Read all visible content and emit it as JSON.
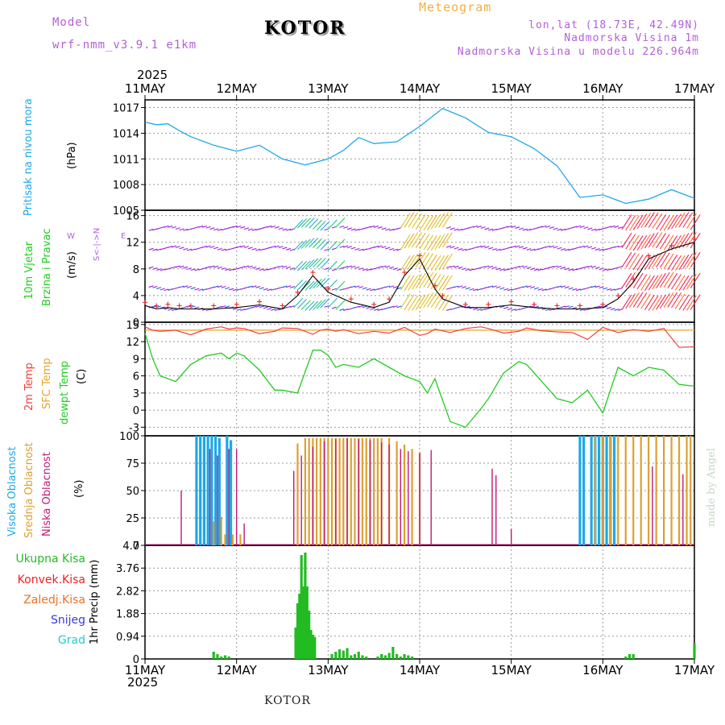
{
  "header": {
    "model_label": "Model",
    "model_name": "wrf-nmm_v3.9.1  e1km",
    "station": "KOTOR",
    "chart_title": "Meteogram",
    "lonlat": "lon,lat (18.73E, 42.49N)",
    "elevation": "Nadmorska Visina 1m",
    "model_elevation": "Nadmorska Visina u modelu 226.964m",
    "year_top": "2025",
    "year_bottom": "2025",
    "footer_station": "KOTOR",
    "credit": "made by Angel"
  },
  "axis_dates": [
    "11MAY",
    "12MAY",
    "13MAY",
    "14MAY",
    "15MAY",
    "16MAY",
    "17MAY"
  ],
  "colors": {
    "pressure": "#1ea8e8",
    "temp2m": "#ee4040",
    "sfc_temp": "#e9a42a",
    "dewpoint": "#22cc22",
    "cloud_high": "#1ea8e8",
    "cloud_mid": "#dea030",
    "cloud_low": "#c01a7a",
    "precip_total": "#22bb22",
    "precip_conv": "#ee2222",
    "precip_frz": "#f07020",
    "precip_snow": "#3838e0",
    "precip_hail": "#22cccc"
  },
  "panel_labels": {
    "pressure_title": "Pritisak na nivou mora",
    "pressure_unit": "(hPa)",
    "wind_title1": "10m Vjetar",
    "wind_title2": "Brzina i Pravac",
    "wind_unit": "(m/s)",
    "wind_dir_compass": "S<-|->N",
    "wind_dir_w": "W",
    "wind_dir_e": "E",
    "temp_2m": "2m Temp",
    "temp_sfc": "SFC Temp",
    "temp_dew": "dewpt Temp",
    "temp_unit": "(C)",
    "cloud_high": "Visoka Oblacnost",
    "cloud_mid": "Srednja Oblacnost",
    "cloud_low": "Niska Oblacnost",
    "cloud_unit": "(%)",
    "precip_unit": "1hr Precip (mm)"
  },
  "precip_legend": [
    "Ukupna Kisa",
    "Konvek.Kisa",
    "Zaledj.Kisa",
    "Snijeg",
    "Grad"
  ],
  "chart_data": [
    {
      "type": "line",
      "panel": "pressure",
      "ylabel": "(hPa)",
      "yticks": [
        1005,
        1008,
        1011,
        1014,
        1017
      ],
      "ylim": [
        1005,
        1017.9
      ],
      "x_hours": [
        0,
        3,
        6,
        9,
        12,
        18,
        24,
        30,
        36,
        42,
        48,
        52,
        56,
        60,
        66,
        72,
        78,
        84,
        90,
        96,
        102,
        108,
        114,
        120,
        126,
        132,
        138,
        144
      ],
      "series": [
        {
          "name": "Pritisak na nivou mora",
          "values": [
            1015.3,
            1015.0,
            1015.1,
            1014.3,
            1013.6,
            1012.6,
            1011.9,
            1012.6,
            1011.0,
            1010.3,
            1011.0,
            1012.0,
            1013.5,
            1012.8,
            1013.0,
            1014.8,
            1016.9,
            1015.8,
            1014.1,
            1013.6,
            1012.2,
            1010.2,
            1006.5,
            1006.8,
            1005.8,
            1006.3,
            1007.4,
            1006.4
          ]
        }
      ]
    },
    {
      "type": "line",
      "panel": "wind",
      "ylabel": "(m/s)",
      "yticks": [
        0,
        4,
        8,
        12,
        16
      ],
      "ylim": [
        0,
        16.8
      ],
      "x_hours": [
        0,
        3,
        6,
        9,
        12,
        18,
        24,
        30,
        36,
        40,
        44,
        48,
        54,
        60,
        64,
        68,
        72,
        76,
        78,
        84,
        90,
        96,
        102,
        108,
        114,
        120,
        124,
        128,
        132,
        138,
        144
      ],
      "series": [
        {
          "name": "10m Vjetar",
          "values": [
            2.5,
            2.0,
            2.2,
            2.0,
            2.0,
            2.0,
            2.2,
            2.6,
            2.0,
            4.0,
            7.0,
            4.5,
            3.0,
            2.2,
            3.0,
            7.0,
            9.5,
            5.0,
            3.5,
            2.2,
            2.2,
            2.6,
            2.2,
            2.0,
            2.0,
            2.2,
            3.5,
            6.0,
            9.5,
            11.0,
            12.0
          ]
        }
      ]
    },
    {
      "type": "line",
      "panel": "temperature",
      "ylabel": "(C)",
      "yticks": [
        -3,
        0,
        3,
        6,
        9,
        12,
        15
      ],
      "ylim": [
        -4.5,
        15.4
      ],
      "x_hours": [
        0,
        2,
        4,
        6,
        8,
        10,
        12,
        16,
        20,
        22,
        24,
        26,
        30,
        34,
        36,
        40,
        44,
        46,
        48,
        50,
        52,
        56,
        60,
        64,
        68,
        72,
        74,
        76,
        80,
        84,
        88,
        90,
        94,
        98,
        100,
        104,
        108,
        112,
        116,
        120,
        124,
        128,
        132,
        136,
        140,
        144
      ],
      "series": [
        {
          "name": "2m Temp",
          "values": [
            14.6,
            14.0,
            13.8,
            13.9,
            14.0,
            13.6,
            13.2,
            14.2,
            14.6,
            14.2,
            14.4,
            14.3,
            13.4,
            13.8,
            14.4,
            14.3,
            13.3,
            14.0,
            14.2,
            13.8,
            14.1,
            13.4,
            13.8,
            13.5,
            14.5,
            13.1,
            13.4,
            14.2,
            13.6,
            14.3,
            14.6,
            14.3,
            13.5,
            13.8,
            14.4,
            13.9,
            13.7,
            13.6,
            12.4,
            14.5,
            13.6,
            14.1,
            13.8,
            14.3,
            11.0,
            11.1
          ]
        },
        {
          "name": "SFC Temp",
          "values": [
            14.0,
            14.0,
            14.0,
            14.0,
            14.0,
            14.0,
            14.0,
            14.0,
            14.0,
            14.0,
            14.0,
            14.0,
            14.0,
            14.0,
            14.0,
            14.0,
            14.0,
            14.0,
            14.0,
            14.0,
            14.0,
            14.0,
            14.0,
            14.0,
            14.0,
            14.0,
            14.0,
            14.0,
            14.0,
            14.0,
            14.0,
            14.0,
            14.0,
            14.0,
            14.0,
            14.0,
            14.0,
            14.0,
            14.0,
            14.0,
            14.0,
            14.0,
            14.0,
            14.0,
            14.0,
            14.0
          ]
        },
        {
          "name": "dewpt Temp",
          "values": [
            13.5,
            9.0,
            6.0,
            5.5,
            5.0,
            6.5,
            8.0,
            9.5,
            10.0,
            9.0,
            10.0,
            9.5,
            7.0,
            3.5,
            3.5,
            3.0,
            10.5,
            10.5,
            9.6,
            7.5,
            8.0,
            7.5,
            9.0,
            7.5,
            6.0,
            5.0,
            3.0,
            5.5,
            -2.0,
            -3.0,
            0.2,
            2.0,
            6.5,
            8.5,
            8.0,
            5.0,
            2.0,
            1.3,
            3.5,
            -0.5,
            7.5,
            6.0,
            7.5,
            7.0,
            4.5,
            4.2
          ]
        }
      ]
    },
    {
      "type": "bar",
      "panel": "clouds",
      "ylabel": "(%)",
      "yticks": [
        0,
        25,
        50,
        75,
        100
      ],
      "ylim": [
        0,
        100
      ],
      "series": [
        {
          "name": "Visoka Oblacnost",
          "x_hours": [
            13.5,
            14.5,
            15.5,
            16.5,
            17.5,
            18.5,
            19.5,
            21.5,
            22.5,
            114,
            115,
            117,
            118,
            119,
            120,
            121,
            122,
            123
          ],
          "values": [
            100,
            100,
            100,
            100,
            100,
            100,
            98,
            100,
            96,
            100,
            100,
            100,
            100,
            100,
            100,
            100,
            100,
            100
          ]
        },
        {
          "name": "Srednja Oblacnost",
          "x_hours": [
            18,
            20,
            21,
            23,
            25,
            40,
            42,
            43,
            44,
            45,
            46,
            47,
            48,
            49,
            50,
            51,
            52,
            53,
            54,
            55,
            56,
            57,
            58,
            59,
            60,
            61,
            62,
            64,
            66,
            68,
            70,
            72,
            118,
            120,
            122,
            124,
            126,
            128,
            130,
            132,
            134,
            136,
            138,
            140,
            142,
            143
          ],
          "values": [
            22,
            26,
            10,
            10,
            10,
            93,
            98,
            98,
            98,
            98,
            98,
            98,
            98,
            98,
            98,
            98,
            98,
            98,
            98,
            98,
            98,
            98,
            98,
            98,
            98,
            98,
            98,
            98,
            95,
            92,
            88,
            85,
            100,
            100,
            100,
            100,
            100,
            100,
            100,
            100,
            100,
            100,
            100,
            100,
            100,
            100
          ]
        },
        {
          "name": "Niska Oblacnost",
          "x_hours": [
            9.5,
            17,
            19,
            22,
            24,
            26,
            39,
            41,
            44,
            47,
            50,
            53,
            56,
            59,
            62,
            64,
            67,
            69,
            72,
            75,
            91,
            92,
            96,
            133,
            141
          ],
          "values": [
            50,
            88,
            82,
            88,
            88,
            20,
            68,
            82,
            90,
            95,
            97,
            98,
            97,
            96,
            94,
            92,
            88,
            86,
            84,
            87,
            70,
            64,
            15,
            72,
            65
          ]
        }
      ]
    },
    {
      "type": "bar",
      "panel": "precipitation",
      "ylabel": "1hr Precip (mm)",
      "yticks": [
        0,
        0.94,
        1.88,
        2.82,
        3.76,
        4.7
      ],
      "ylim": [
        0,
        4.7
      ],
      "series": [
        {
          "name": "Ukupna Kisa",
          "x_hours": [
            18,
            19,
            20,
            21,
            22,
            39.5,
            40,
            40.5,
            41,
            41.5,
            42,
            42.5,
            43,
            43.5,
            44,
            44.5,
            49,
            50,
            51,
            52,
            53,
            54,
            55,
            56,
            57,
            58,
            61,
            62,
            63,
            64,
            65,
            66,
            67,
            68,
            69,
            70,
            126,
            127,
            128,
            144
          ],
          "values": [
            0.3,
            0.2,
            0.1,
            0.15,
            0.1,
            1.3,
            2.3,
            2.7,
            4.3,
            3.0,
            4.4,
            3.0,
            2.0,
            1.2,
            1.0,
            0.9,
            0.2,
            0.3,
            0.4,
            0.35,
            0.45,
            0.15,
            0.2,
            0.3,
            0.15,
            0.1,
            0.1,
            0.2,
            0.15,
            0.25,
            0.5,
            0.2,
            0.1,
            0.2,
            0.15,
            0.1,
            0.1,
            0.2,
            0.2,
            0.65
          ]
        }
      ]
    }
  ]
}
